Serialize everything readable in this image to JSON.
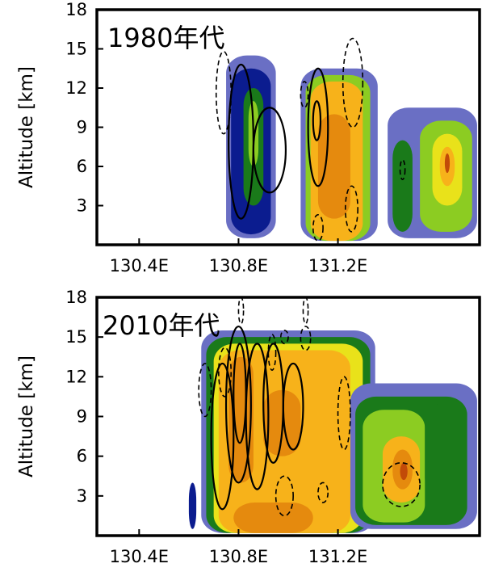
{
  "chart_data": [
    {
      "type": "heatmap",
      "title": "1980年代",
      "ylabel": "Altitude [km]",
      "xlabel": "",
      "ylim": [
        0,
        18
      ],
      "xlim": [
        130.23,
        131.77
      ],
      "yticks": [
        3,
        6,
        9,
        12,
        15,
        18
      ],
      "xticks": [
        {
          "value": 130.4,
          "label": "130.4E"
        },
        {
          "value": 130.8,
          "label": "130.8E"
        },
        {
          "value": 131.2,
          "label": "131.2E"
        }
      ],
      "colors": {
        "level1": "#6a6fc4",
        "level2": "#0b1c8f",
        "level3": "#1a7a1a",
        "level4": "#8ccc22",
        "level5": "#e9e21a",
        "level6": "#f7b21a",
        "level7": "#e58a0e",
        "level8": "#c24a08"
      },
      "cells": [
        {
          "x0": 130.75,
          "x1": 130.95,
          "y0": 0.5,
          "y1": 14.5,
          "level": 1
        },
        {
          "x0": 130.77,
          "x1": 130.93,
          "y0": 0.8,
          "y1": 13.5,
          "level": 2
        },
        {
          "x0": 130.82,
          "x1": 130.9,
          "y0": 3,
          "y1": 12,
          "level": 3
        },
        {
          "x0": 130.84,
          "x1": 130.88,
          "y0": 6,
          "y1": 11,
          "level": 4
        },
        {
          "x0": 131.05,
          "x1": 131.36,
          "y0": 0.3,
          "y1": 13.5,
          "level": 1
        },
        {
          "x0": 131.07,
          "x1": 131.33,
          "y0": 0.3,
          "y1": 13,
          "level": 4
        },
        {
          "x0": 131.09,
          "x1": 131.3,
          "y0": 0.3,
          "y1": 12.5,
          "level": 6
        },
        {
          "x0": 131.12,
          "x1": 131.25,
          "y0": 2,
          "y1": 10,
          "level": 7
        },
        {
          "x0": 131.4,
          "x1": 131.76,
          "y0": 0.5,
          "y1": 10.5,
          "level": 1
        },
        {
          "x0": 131.42,
          "x1": 131.5,
          "y0": 1,
          "y1": 8,
          "level": 3
        },
        {
          "x0": 131.53,
          "x1": 131.74,
          "y0": 1,
          "y1": 9.5,
          "level": 4
        },
        {
          "x0": 131.58,
          "x1": 131.7,
          "y0": 3,
          "y1": 8.5,
          "level": 5
        },
        {
          "x0": 131.61,
          "x1": 131.67,
          "y0": 4.5,
          "y1": 7.5,
          "level": 6
        },
        {
          "x0": 131.63,
          "x1": 131.65,
          "y0": 5.5,
          "y1": 7,
          "level": 8
        }
      ],
      "solid_contours": [
        {
          "x0": 130.76,
          "x1": 130.86,
          "y0": 2,
          "y1": 13.8
        },
        {
          "x0": 130.86,
          "x1": 130.99,
          "y0": 4,
          "y1": 10.5
        },
        {
          "x0": 131.08,
          "x1": 131.16,
          "y0": 4.5,
          "y1": 13.5
        },
        {
          "x0": 131.1,
          "x1": 131.13,
          "y0": 8,
          "y1": 11
        }
      ],
      "dashed_contours": [
        {
          "x0": 130.71,
          "x1": 130.77,
          "y0": 8.5,
          "y1": 14.8
        },
        {
          "x0": 131.05,
          "x1": 131.08,
          "y0": 10.5,
          "y1": 12.5
        },
        {
          "x0": 131.22,
          "x1": 131.3,
          "y0": 9,
          "y1": 15.8
        },
        {
          "x0": 131.23,
          "x1": 131.28,
          "y0": 1,
          "y1": 4.5
        },
        {
          "x0": 131.1,
          "x1": 131.14,
          "y0": 0.3,
          "y1": 2.3
        },
        {
          "x0": 131.45,
          "x1": 131.47,
          "y0": 5,
          "y1": 6.5
        }
      ]
    },
    {
      "type": "heatmap",
      "title": "2010年代",
      "ylabel": "Altitude [km]",
      "xlabel": "",
      "ylim": [
        0,
        18
      ],
      "xlim": [
        130.23,
        131.77
      ],
      "yticks": [
        3,
        6,
        9,
        12,
        15,
        18
      ],
      "xticks": [
        {
          "value": 130.4,
          "label": "130.4E"
        },
        {
          "value": 130.8,
          "label": "130.8E"
        },
        {
          "value": 131.2,
          "label": "131.2E"
        }
      ],
      "colors": {
        "level1": "#6a6fc4",
        "level2": "#0b1c8f",
        "level3": "#1a7a1a",
        "level4": "#8ccc22",
        "level5": "#e9e21a",
        "level6": "#f7b21a",
        "level7": "#e58a0e",
        "level8": "#c24a08"
      },
      "cells": [
        {
          "x0": 130.6,
          "x1": 130.63,
          "y0": 0.5,
          "y1": 4
        },
        {
          "x0": 130.65,
          "x1": 131.35,
          "y0": 0.2,
          "y1": 15.5,
          "level": 1
        },
        {
          "x0": 130.67,
          "x1": 131.33,
          "y0": 0.2,
          "y1": 15,
          "level": 3
        },
        {
          "x0": 130.7,
          "x1": 131.3,
          "y0": 0.2,
          "y1": 14.5,
          "level": 5
        },
        {
          "x0": 130.72,
          "x1": 131.25,
          "y0": 0.2,
          "y1": 14,
          "level": 6
        },
        {
          "x0": 130.76,
          "x1": 130.86,
          "y0": 4,
          "y1": 13.5,
          "level": 7
        },
        {
          "x0": 130.9,
          "x1": 131.05,
          "y0": 6,
          "y1": 11,
          "level": 7
        },
        {
          "x0": 130.78,
          "x1": 131.1,
          "y0": 0.2,
          "y1": 2.5,
          "level": 7
        },
        {
          "x0": 131.25,
          "x1": 131.76,
          "y0": 0.5,
          "y1": 11.5,
          "level": 1
        },
        {
          "x0": 131.27,
          "x1": 131.72,
          "y0": 0.8,
          "y1": 10.5,
          "level": 3
        },
        {
          "x0": 131.3,
          "x1": 131.55,
          "y0": 1,
          "y1": 9.5,
          "level": 4
        },
        {
          "x0": 131.55,
          "x1": 131.7,
          "y0": 3,
          "y1": 10,
          "level": 3
        },
        {
          "x0": 131.38,
          "x1": 131.53,
          "y0": 2.5,
          "y1": 7.5,
          "level": 6
        },
        {
          "x0": 131.42,
          "x1": 131.5,
          "y0": 3.5,
          "y1": 6.5,
          "level": 7
        },
        {
          "x0": 131.45,
          "x1": 131.48,
          "y0": 4.2,
          "y1": 5.5,
          "level": 8
        }
      ],
      "solid_contours": [
        {
          "x0": 130.69,
          "x1": 130.78,
          "y0": 2,
          "y1": 13
        },
        {
          "x0": 130.75,
          "x1": 130.85,
          "y0": 4,
          "y1": 15.8
        },
        {
          "x0": 130.78,
          "x1": 130.83,
          "y0": 7,
          "y1": 14.5
        },
        {
          "x0": 130.83,
          "x1": 130.92,
          "y0": 3.5,
          "y1": 14.5
        },
        {
          "x0": 130.9,
          "x1": 130.98,
          "y0": 5.5,
          "y1": 14.5
        },
        {
          "x0": 130.98,
          "x1": 131.06,
          "y0": 6.5,
          "y1": 13
        }
      ],
      "dashed_contours": [
        {
          "x0": 130.64,
          "x1": 130.69,
          "y0": 9,
          "y1": 13
        },
        {
          "x0": 130.72,
          "x1": 130.77,
          "y0": 10.5,
          "y1": 14.2
        },
        {
          "x0": 130.92,
          "x1": 130.95,
          "y0": 12.5,
          "y1": 15.2
        },
        {
          "x0": 130.97,
          "x1": 131.0,
          "y0": 14.5,
          "y1": 15.5
        },
        {
          "x0": 131.05,
          "x1": 131.09,
          "y0": 14,
          "y1": 15.8
        },
        {
          "x0": 131.2,
          "x1": 131.25,
          "y0": 6.5,
          "y1": 12
        },
        {
          "x0": 130.95,
          "x1": 131.02,
          "y0": 1.5,
          "y1": 4.5
        },
        {
          "x0": 131.12,
          "x1": 131.16,
          "y0": 2.5,
          "y1": 4
        },
        {
          "x0": 131.38,
          "x1": 131.53,
          "y0": 2.2,
          "y1": 5.5
        },
        {
          "x0": 130.8,
          "x1": 130.82,
          "y0": 16,
          "y1": 18
        },
        {
          "x0": 131.06,
          "x1": 131.08,
          "y0": 16,
          "y1": 18
        }
      ]
    }
  ]
}
